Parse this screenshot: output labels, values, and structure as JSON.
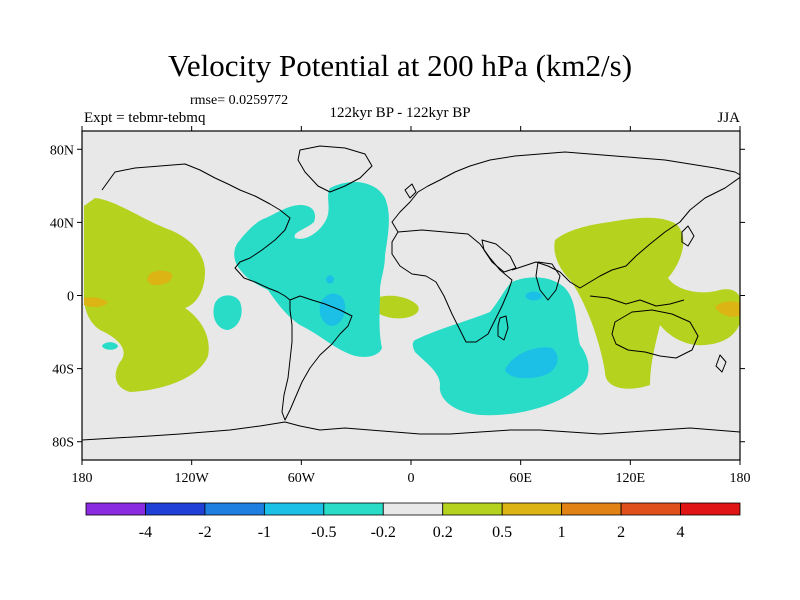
{
  "title": "Velocity Potential at 200 hPa (km2/s)",
  "rmse_label": "rmse= 0.0259772",
  "experiment_label": "Expt = tebmr-tebmq",
  "period_label": "122kyr BP - 122kyr BP",
  "season_label": "JJA",
  "lat_ticks": [
    {
      "label": "80N",
      "value": 80
    },
    {
      "label": "40N",
      "value": 40
    },
    {
      "label": "0",
      "value": 0
    },
    {
      "label": "40S",
      "value": -40
    },
    {
      "label": "80S",
      "value": -80
    }
  ],
  "lon_ticks": [
    {
      "label": "180",
      "value": -180
    },
    {
      "label": "120W",
      "value": -120
    },
    {
      "label": "60W",
      "value": -60
    },
    {
      "label": "0",
      "value": 0
    },
    {
      "label": "60E",
      "value": 60
    },
    {
      "label": "120E",
      "value": 120
    },
    {
      "label": "180",
      "value": 180
    }
  ],
  "colorbar": {
    "colors": [
      "#8a2be2",
      "#1f3fd6",
      "#1e7fe0",
      "#1cc0e6",
      "#28dcc8",
      "#e8e8e8",
      "#b4d21e",
      "#dcb414",
      "#e08214",
      "#e0501a",
      "#e01414"
    ],
    "labels": [
      "-4",
      "-2",
      "-1",
      "-0.5",
      "-0.2",
      "0.2",
      "0.5",
      "1",
      "2",
      "4"
    ]
  },
  "colors": {
    "background": "#e8e8e8",
    "neg_02_05": "#28dcc8",
    "neg_05_1": "#1cc0e6",
    "pos_02_05": "#b4d21e",
    "pos_05_1": "#dcb414",
    "pos_1_2": "#e08214"
  }
}
